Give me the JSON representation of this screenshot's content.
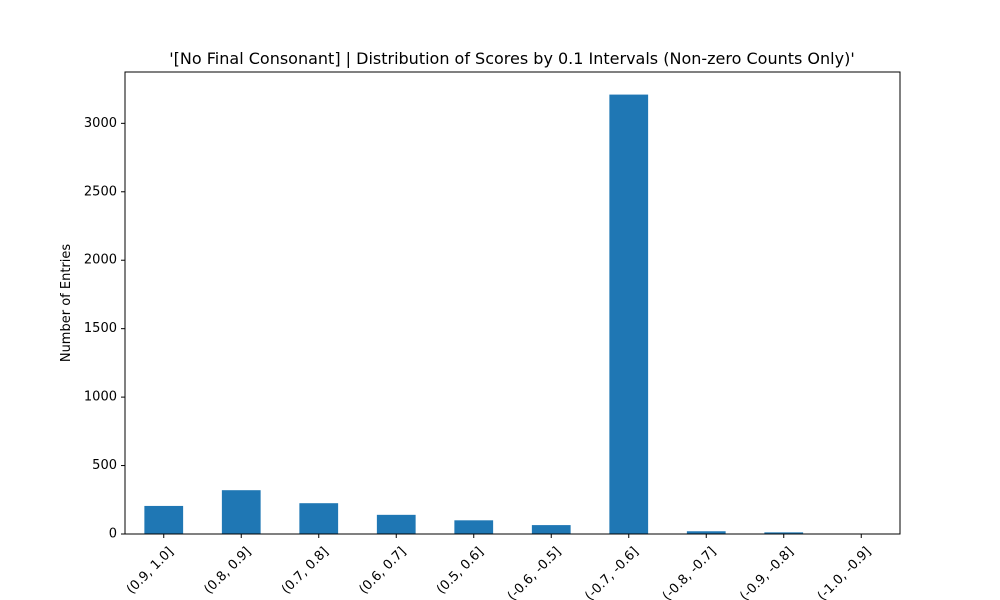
{
  "chart_data": {
    "type": "bar",
    "title": "'[No Final Consonant] | Distribution of Scores by 0.1 Intervals (Non-zero Counts Only)'",
    "xlabel": "",
    "ylabel": "Number of Entries",
    "categories": [
      "(0.9, 1.0]",
      "(0.8, 0.9]",
      "(0.7, 0.8]",
      "(0.6, 0.7]",
      "(0.5, 0.6]",
      "(-0.6, -0.5]",
      "(-0.7, -0.6]",
      "(-0.8, -0.7]",
      "(-0.9, -0.8]",
      "(-1.0, -0.9]"
    ],
    "values": [
      205,
      320,
      225,
      140,
      100,
      65,
      3210,
      20,
      12,
      2
    ],
    "ylim": [
      0,
      3375
    ],
    "yticks": [
      0,
      500,
      1000,
      1500,
      2000,
      2500,
      3000
    ],
    "ytick_labels": [
      "0",
      "500",
      "1000",
      "1500",
      "2000",
      "2500",
      "3000"
    ],
    "grid": false,
    "bar_color": "#1f77b4"
  }
}
